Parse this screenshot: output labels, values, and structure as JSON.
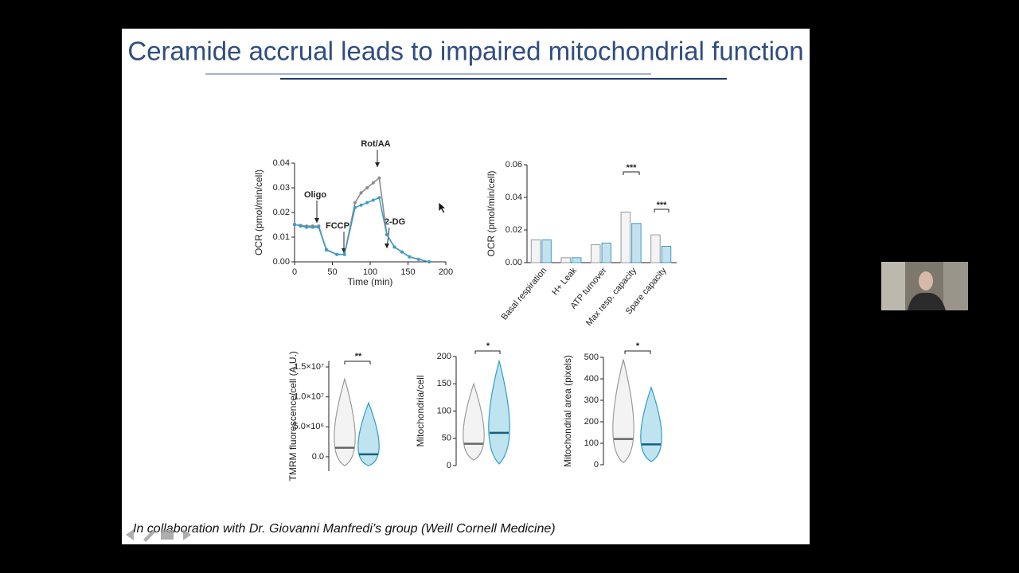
{
  "slide": {
    "title": "Ceramide accrual leads to impaired mitochondrial function",
    "footer": "In collaboration with Dr. Giovanni Manfredi’s group (Weill Cornell Medicine)"
  },
  "chart_data": [
    {
      "type": "line",
      "ylabel": "OCR (pmol/min/cell)",
      "xlabel": "Time (min)",
      "x": [
        0,
        8,
        16,
        24,
        32,
        42,
        56,
        66,
        80,
        88,
        96,
        104,
        112,
        122,
        132,
        142,
        152,
        164,
        178
      ],
      "series": [
        {
          "color": "#8c8c8c",
          "values": [
            0.015,
            0.0148,
            0.0145,
            0.0145,
            0.0145,
            0.005,
            0.003,
            0.003,
            0.024,
            0.028,
            0.03,
            0.032,
            0.034,
            0.011,
            0.006,
            0.004,
            0.002,
            0.001,
            0.0
          ]
        },
        {
          "color": "#3f9cc4",
          "values": [
            0.0152,
            0.0145,
            0.014,
            0.014,
            0.014,
            0.0048,
            0.003,
            0.003,
            0.022,
            0.023,
            0.024,
            0.025,
            0.026,
            0.011,
            0.006,
            0.004,
            0.002,
            0.001,
            0.0
          ]
        }
      ],
      "xlim": [
        0,
        200
      ],
      "xticks": [
        0,
        50,
        100,
        150,
        200
      ],
      "ylim": [
        0,
        0.04
      ],
      "yticks": [
        {
          "value": 0,
          "label": "0.00"
        },
        {
          "value": 0.01,
          "label": "0.01"
        },
        {
          "value": 0.02,
          "label": "0.02"
        },
        {
          "value": 0.03,
          "label": "0.03"
        },
        {
          "value": 0.04,
          "label": "0.04"
        }
      ],
      "annotations": [
        "Oligo",
        "FCCP",
        "Rot/AA",
        "2-DG"
      ]
    },
    {
      "type": "bar",
      "ylabel": "OCR (pmol/min/cell)",
      "categories": [
        "Basal respiration",
        "H+ Leak",
        "ATP turnover",
        "Max resp. capacity",
        "Spare capacity"
      ],
      "series": [
        {
          "color": "#9a9a9a",
          "values": [
            0.014,
            0.003,
            0.011,
            0.031,
            0.017
          ]
        },
        {
          "color": "#3f9cc4",
          "values": [
            0.014,
            0.003,
            0.012,
            0.024,
            0.01
          ]
        }
      ],
      "ylim": [
        0,
        0.06
      ],
      "yticks": [
        {
          "value": 0,
          "label": "0.00"
        },
        {
          "value": 0.02,
          "label": "0.02"
        },
        {
          "value": 0.04,
          "label": "0.04"
        },
        {
          "value": 0.06,
          "label": "0.06"
        }
      ],
      "annotations": [
        "***",
        "***"
      ]
    },
    {
      "type": "violin",
      "ylabel": "TMRM fluorescence/cell (A.U.)",
      "series": [
        {
          "color": "#9a9a9a",
          "min": -1500000,
          "median": 1500000,
          "max": 13000000
        },
        {
          "color": "#2aa0c8",
          "min": -1500000,
          "median": 400000,
          "max": 9000000
        }
      ],
      "ylim": [
        -2400000,
        16000000
      ],
      "yticks": [
        {
          "value": 0,
          "label": "0.0"
        },
        {
          "value": 5000000,
          "label": "5.0×10⁶"
        },
        {
          "value": 10000000,
          "label": "1.0×10⁷"
        },
        {
          "value": 15000000,
          "label": "1.5×10⁷"
        }
      ],
      "annotations": [
        "**"
      ]
    },
    {
      "type": "violin",
      "ylabel": "Mitochondria/cell",
      "series": [
        {
          "color": "#9a9a9a",
          "min": 10,
          "median": 40,
          "max": 150
        },
        {
          "color": "#2aa0c8",
          "min": 3,
          "median": 60,
          "max": 192
        }
      ],
      "ylim": [
        0,
        200
      ],
      "yticks": [
        0,
        50,
        100,
        150,
        200
      ],
      "annotations": [
        "*"
      ]
    },
    {
      "type": "violin",
      "ylabel": "Mitochondrial area (pixels)",
      "series": [
        {
          "color": "#9a9a9a",
          "min": 10,
          "median": 120,
          "max": 490
        },
        {
          "color": "#2aa0c8",
          "min": 15,
          "median": 95,
          "max": 360
        }
      ],
      "ylim": [
        0,
        500
      ],
      "yticks": [
        0,
        100,
        200,
        300,
        400,
        500
      ],
      "annotations": [
        "*"
      ]
    }
  ]
}
